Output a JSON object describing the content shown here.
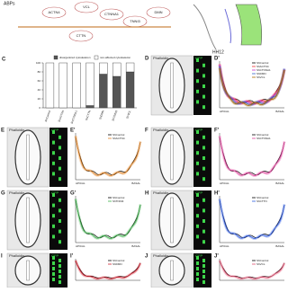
{
  "panel_a": {
    "title": "ABPs",
    "proteins": [
      "ACTN4",
      "VCL",
      "CTNNA1",
      "TNNI3",
      "DMN",
      "CTTN"
    ],
    "stage": "HH12"
  },
  "chart_data": {
    "type": "bar",
    "label": "C",
    "categories": [
      "ShControl",
      "ShACTN4",
      "ShCTNNA1",
      "ShCTTN",
      "ShDMN",
      "ShTNNI3",
      "ShVCL"
    ],
    "series": [
      {
        "name": "disorganized cytoskeleton",
        "color": "#555555",
        "values": [
          0,
          0,
          0,
          5,
          75,
          70,
          80
        ]
      },
      {
        "name": "non-affected cytoskeleton",
        "color": "#ffffff",
        "values": [
          100,
          100,
          100,
          95,
          25,
          30,
          20
        ]
      }
    ],
    "ylim": [
      0,
      100
    ],
    "yticks": [
      0,
      20,
      40,
      60,
      80,
      100
    ]
  },
  "axis": {
    "apical": "APICAL",
    "basal": "BASAL"
  },
  "panels": [
    {
      "label": "D",
      "stain": "Phalloidin",
      "gfp": "GFP",
      "plot_label": "D'",
      "legend": [
        "ShControl",
        "ShACTN4",
        "ShCTNNA1",
        "ShDMN",
        "ShVCL"
      ]
    },
    {
      "label": "E",
      "stain": "Phalloidin",
      "gfp": "GFP",
      "plot_label": "E'",
      "legend": [
        "ShControl",
        "ShACTN4"
      ]
    },
    {
      "label": "F",
      "stain": "Phalloidin",
      "gfp": "GFP",
      "plot_label": "F'",
      "legend": [
        "ShControl",
        "ShCTNNA1"
      ]
    },
    {
      "label": "G",
      "stain": "Phalloidin",
      "gfp": "GFP",
      "plot_label": "G'",
      "legend": [
        "ShControl",
        "ShTNNI3"
      ]
    },
    {
      "label": "H",
      "stain": "Phalloidin",
      "gfp": "GFP",
      "plot_label": "H'",
      "legend": [
        "ShControl",
        "ShCTTN"
      ]
    },
    {
      "label": "I",
      "stain": "Phalloidin",
      "gfp": "GFP",
      "plot_label": "I'",
      "legend": [
        "ShControl",
        "ShDMN"
      ]
    },
    {
      "label": "J",
      "stain": "Phalloidin",
      "gfp": "GFP",
      "plot_label": "J'",
      "legend": [
        "ShControl",
        "ShVCL"
      ]
    }
  ]
}
